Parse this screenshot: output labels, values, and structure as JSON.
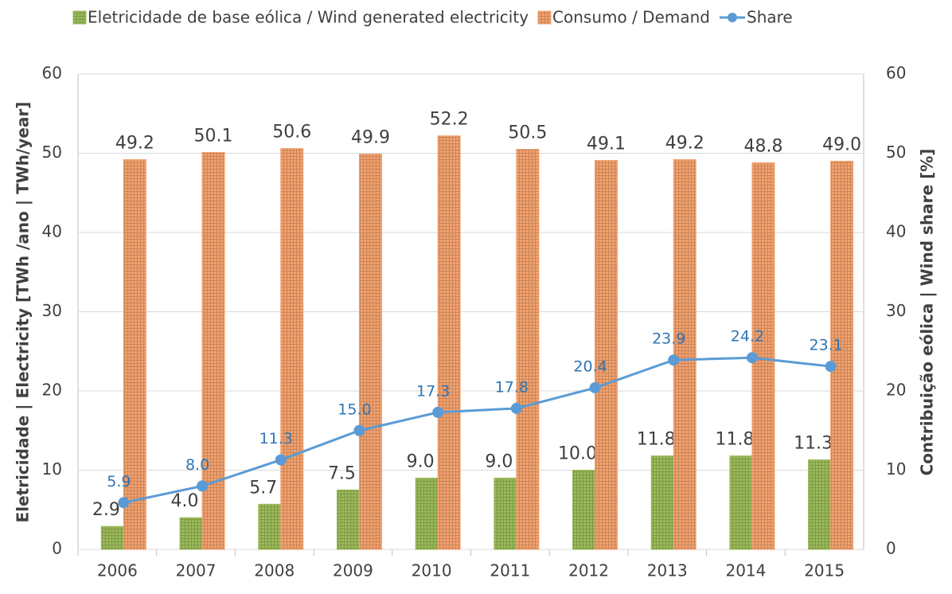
{
  "chart_data": {
    "type": "bar",
    "categories": [
      "2006",
      "2007",
      "2008",
      "2009",
      "2010",
      "2011",
      "2012",
      "2013",
      "2014",
      "2015"
    ],
    "series": [
      {
        "name": "Eletricidade de base eólica / Wind generated electricity",
        "color": "#9bbb59",
        "type": "bar",
        "values": [
          2.9,
          4.0,
          5.7,
          7.5,
          9.0,
          9.0,
          10.0,
          11.8,
          11.8,
          11.3
        ],
        "value_labels": [
          "2.9",
          "4.0",
          "5.7",
          "7.5",
          "9.0",
          "9.0",
          "10.0",
          "11.8",
          "11.8",
          "11.3"
        ]
      },
      {
        "name": "Consumo / Demand",
        "color": "#f4a26e",
        "type": "bar",
        "values": [
          49.2,
          50.1,
          50.6,
          49.9,
          52.2,
          50.5,
          49.1,
          49.2,
          48.8,
          49.0
        ],
        "value_labels": [
          "49.2",
          "50.1",
          "50.6",
          "49.9",
          "52.2",
          "50.5",
          "49.1",
          "49.2",
          "48.8",
          "49.0"
        ]
      },
      {
        "name": "Share",
        "color": "#5b9bd5",
        "type": "line",
        "axis": "y2",
        "values": [
          5.9,
          8.0,
          11.3,
          15.0,
          17.3,
          17.8,
          20.4,
          23.9,
          24.2,
          23.1
        ],
        "value_labels": [
          "5.9",
          "8.0",
          "11.3",
          "15.0",
          "17.3",
          "17.8",
          "20.4",
          "23.9",
          "24.2",
          "23.1"
        ]
      }
    ],
    "ylabel": "Eletricidade | Electricity [TWh /ano | TWh/year]",
    "y2label": "Contribuição eólica | Wind share [%]",
    "ylim": [
      0,
      60
    ],
    "yticks": [
      0,
      10,
      20,
      30,
      40,
      50,
      60
    ],
    "y2lim": [
      0,
      60
    ],
    "y2ticks": [
      0,
      10,
      20,
      30,
      40,
      50,
      60
    ],
    "grid": true,
    "legend": "top"
  }
}
